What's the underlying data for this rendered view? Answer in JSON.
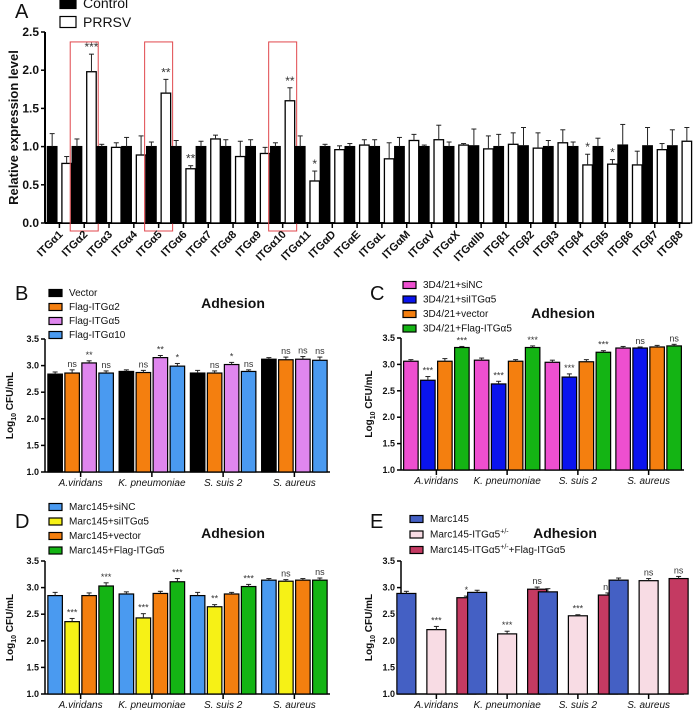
{
  "chart_data": [
    {
      "id": "A",
      "panel_label": "A",
      "type": "bar",
      "title": "",
      "xlabel": "",
      "ylabel": "Relative expression level",
      "ylim": [
        0,
        2.5
      ],
      "yticks": [
        "0.0",
        "0.5",
        "1.0",
        "1.5",
        "2.0",
        "2.5"
      ],
      "legend_position": "top-left",
      "categories": [
        "ITGα1",
        "ITGα2",
        "ITGα3",
        "ITGα4",
        "ITGα5",
        "ITGα6",
        "ITGα7",
        "ITGα8",
        "ITGα9",
        "ITGα10",
        "ITGα11",
        "ITGαD",
        "ITGαE",
        "ITGαL",
        "ITGαM",
        "ITGαV",
        "ITGαX",
        "ITGαIIb",
        "ITGβ1",
        "ITGβ2",
        "ITGβ3",
        "ITGβ4",
        "ITGβ5",
        "ITGβ6",
        "ITGβ7",
        "ITGβ8"
      ],
      "highlighted_categories": [
        "ITGα2",
        "ITGα5",
        "ITGα10"
      ],
      "highlight_color": "#e0474c",
      "series": [
        {
          "name": "Control",
          "fill": "#000000",
          "stroke": "#000000",
          "values": [
            1.0,
            1.0,
            1.0,
            1.0,
            1.0,
            1.0,
            1.0,
            1.0,
            1.0,
            1.0,
            1.0,
            1.0,
            1.0,
            1.0,
            1.0,
            1.0,
            1.0,
            1.01,
            1.0,
            1.01,
            1.0,
            1.0,
            1.0,
            1.02,
            1.01,
            1.01
          ],
          "errors": [
            0.17,
            0.1,
            0.03,
            0.12,
            0.06,
            0.08,
            0.07,
            0.09,
            0.09,
            0.05,
            0.14,
            0.03,
            0.04,
            0.09,
            0.12,
            0.02,
            0.06,
            0.22,
            0.16,
            0.24,
            0.08,
            0.06,
            0.11,
            0.27,
            0.24,
            0.21
          ],
          "significance": [
            "",
            "",
            "",
            "",
            "",
            "",
            "",
            "",
            "",
            "",
            "",
            "",
            "",
            "",
            "",
            "",
            "",
            "",
            "",
            "",
            "",
            "",
            "",
            "",
            "",
            ""
          ]
        },
        {
          "name": "PRRSV",
          "fill": "#ffffff",
          "stroke": "#000000",
          "values": [
            0.78,
            1.98,
            0.99,
            0.89,
            1.7,
            0.71,
            1.1,
            0.87,
            0.91,
            1.6,
            0.55,
            0.96,
            1.02,
            0.84,
            1.08,
            1.09,
            1.02,
            0.97,
            1.03,
            0.98,
            1.05,
            0.76,
            0.77,
            0.76,
            0.96,
            1.07
          ],
          "errors": [
            0.09,
            0.23,
            0.06,
            0.25,
            0.18,
            0.04,
            0.05,
            0.2,
            0.08,
            0.17,
            0.13,
            0.05,
            0.07,
            0.21,
            0.08,
            0.19,
            0.02,
            0.17,
            0.15,
            0.2,
            0.17,
            0.14,
            0.06,
            0.18,
            0.08,
            0.18
          ],
          "significance": [
            "",
            "***",
            "",
            "",
            "**",
            "**",
            "",
            "",
            "",
            "**",
            "*",
            "",
            "",
            "",
            "",
            "",
            "",
            "",
            "",
            "",
            "",
            "*",
            "*",
            "",
            "",
            ""
          ]
        }
      ]
    },
    {
      "id": "B",
      "panel_label": "B",
      "type": "bar",
      "title": "Adhesion",
      "xlabel": "",
      "ylabel": "Log10 CFU/mL",
      "ylabel_parts": {
        "main": "Log",
        "sub": "10",
        "rest": " CFU/mL"
      },
      "ylim": [
        1.0,
        3.5
      ],
      "yticks": [
        "1.0",
        "1.5",
        "2.0",
        "2.5",
        "3.0",
        "3.5"
      ],
      "legend_position": "top-left",
      "categories": [
        "A.viridans",
        "K. pneumoniae",
        "S. suis 2",
        "S. aureus"
      ],
      "series": [
        {
          "name": "Vector",
          "fill": "#000000",
          "values": [
            2.84,
            2.89,
            2.86,
            3.12
          ],
          "errors": [
            0.04,
            0.03,
            0.05,
            0.03
          ],
          "significance": [
            "",
            "",
            "",
            ""
          ]
        },
        {
          "name": "Flag-ITGα2",
          "fill": "#f47f0f",
          "values": [
            2.86,
            2.87,
            2.86,
            3.11
          ],
          "errors": [
            0.06,
            0.04,
            0.04,
            0.05
          ],
          "significance": [
            "ns",
            "ns",
            "ns",
            "ns"
          ]
        },
        {
          "name": "Flag-ITGα5",
          "fill": "#df86ee",
          "values": [
            3.05,
            3.15,
            3.02,
            3.12
          ],
          "errors": [
            0.04,
            0.04,
            0.04,
            0.05
          ],
          "significance": [
            "**",
            "**",
            "*",
            "ns"
          ]
        },
        {
          "name": "Flag-ITGα10",
          "fill": "#4a9af0",
          "values": [
            2.86,
            2.99,
            2.89,
            3.1
          ],
          "errors": [
            0.04,
            0.05,
            0.03,
            0.06
          ],
          "significance": [
            "ns",
            "*",
            "ns",
            "ns"
          ]
        }
      ]
    },
    {
      "id": "C",
      "panel_label": "C",
      "type": "bar",
      "title": "Adhesion",
      "xlabel": "",
      "ylabel": "Log10 CFU/mL",
      "ylabel_parts": {
        "main": "Log",
        "sub": "10",
        "rest": " CFU/mL"
      },
      "ylim": [
        1.0,
        3.5
      ],
      "yticks": [
        "1.0",
        "1.5",
        "2.0",
        "2.5",
        "3.0",
        "3.5"
      ],
      "legend_position": "top-left",
      "categories": [
        "A.viridans",
        "K. pneumoniae",
        "S. suis 2",
        "S. aureus"
      ],
      "series": [
        {
          "name": "3D4/21+siNC",
          "fill": "#ee4fd0",
          "values": [
            3.06,
            3.08,
            3.04,
            3.31
          ],
          "errors": [
            0.03,
            0.04,
            0.04,
            0.03
          ],
          "significance": [
            "",
            "",
            "",
            ""
          ]
        },
        {
          "name": "3D4/21+siITGα5",
          "fill": "#0a14ee",
          "values": [
            2.7,
            2.63,
            2.76,
            3.31
          ],
          "errors": [
            0.07,
            0.05,
            0.06,
            0.02
          ],
          "significance": [
            "***",
            "***",
            "***",
            "ns"
          ]
        },
        {
          "name": "3D4/21+vector",
          "fill": "#f47f0f",
          "values": [
            3.06,
            3.06,
            3.05,
            3.33
          ],
          "errors": [
            0.05,
            0.03,
            0.04,
            0.03
          ],
          "significance": [
            "",
            "",
            "",
            ""
          ]
        },
        {
          "name": "3D4/21+Flag-ITGα5",
          "fill": "#14b414",
          "values": [
            3.32,
            3.32,
            3.23,
            3.35
          ],
          "errors": [
            0.02,
            0.03,
            0.03,
            0.03
          ],
          "significance": [
            "***",
            "***",
            "***",
            "ns"
          ]
        }
      ]
    },
    {
      "id": "D",
      "panel_label": "D",
      "type": "bar",
      "title": "Adhesion",
      "xlabel": "",
      "ylabel": "Log10 CFU/mL",
      "ylabel_parts": {
        "main": "Log",
        "sub": "10",
        "rest": " CFU/mL"
      },
      "ylim": [
        1.0,
        3.5
      ],
      "yticks": [
        "1.0",
        "1.5",
        "2.0",
        "2.5",
        "3.0",
        "3.5"
      ],
      "legend_position": "top-left",
      "categories": [
        "A.viridans",
        "K. pneumoniae",
        "S. suis 2",
        "S. aureus"
      ],
      "series": [
        {
          "name": "Marc145+siNC",
          "fill": "#4a9af0",
          "values": [
            2.85,
            2.88,
            2.85,
            3.14
          ],
          "errors": [
            0.06,
            0.04,
            0.06,
            0.03
          ],
          "significance": [
            "",
            "",
            "",
            ""
          ]
        },
        {
          "name": "Marc145+siITGα5",
          "fill": "#f6f116",
          "values": [
            2.36,
            2.43,
            2.64,
            3.12
          ],
          "errors": [
            0.06,
            0.08,
            0.04,
            0.03
          ],
          "significance": [
            "***",
            "***",
            "**",
            "ns"
          ]
        },
        {
          "name": "Marc145+vector",
          "fill": "#f47f0f",
          "values": [
            2.85,
            2.89,
            2.88,
            3.14
          ],
          "errors": [
            0.05,
            0.04,
            0.03,
            0.03
          ],
          "significance": [
            "",
            "",
            "",
            ""
          ]
        },
        {
          "name": "Marc145+Flag-ITGα5",
          "fill": "#14b414",
          "values": [
            3.03,
            3.11,
            3.02,
            3.14
          ],
          "errors": [
            0.06,
            0.06,
            0.04,
            0.04
          ],
          "significance": [
            "***",
            "***",
            "***",
            "ns"
          ]
        }
      ]
    },
    {
      "id": "E",
      "panel_label": "E",
      "type": "bar",
      "title": "Adhesion",
      "xlabel": "",
      "ylabel": "Log10 CFU/mL",
      "ylabel_parts": {
        "main": "Log",
        "sub": "10",
        "rest": " CFU/mL"
      },
      "ylim": [
        1.0,
        3.5
      ],
      "yticks": [
        "1.0",
        "1.5",
        "2.0",
        "2.5",
        "3.0",
        "3.5"
      ],
      "legend_position": "top-left",
      "categories": [
        "A.viridans",
        "K. pneumoniae",
        "S. suis 2",
        "S. aureus"
      ],
      "series": [
        {
          "name": "Marc145",
          "fill": "#4460c4",
          "values": [
            2.89,
            2.91,
            2.92,
            3.14
          ],
          "errors": [
            0.04,
            0.04,
            0.06,
            0.04
          ],
          "significance": [
            "",
            "",
            "",
            ""
          ]
        },
        {
          "name": "Marc145-ITGα5+/-",
          "name_parts": {
            "main": "Marc145-ITGα5",
            "sup": "+/-",
            "rest": ""
          },
          "fill": "#f8dce4",
          "values": [
            2.21,
            2.13,
            2.47,
            3.13
          ],
          "errors": [
            0.06,
            0.05,
            0.02,
            0.04
          ],
          "significance": [
            "***",
            "***",
            "***",
            "ns"
          ]
        },
        {
          "name": "Marc145-ITGα5+/-+Flag-ITGα5",
          "name_parts": {
            "main": "Marc145-ITGα5",
            "sup": "+/-",
            "rest": "+Flag-ITGα5"
          },
          "fill": "#c43a62",
          "values": [
            2.81,
            2.97,
            2.86,
            3.17
          ],
          "errors": [
            0.03,
            0.04,
            0.04,
            0.04
          ],
          "significance": [
            "*",
            "ns",
            "ns",
            "ns"
          ]
        }
      ]
    }
  ]
}
